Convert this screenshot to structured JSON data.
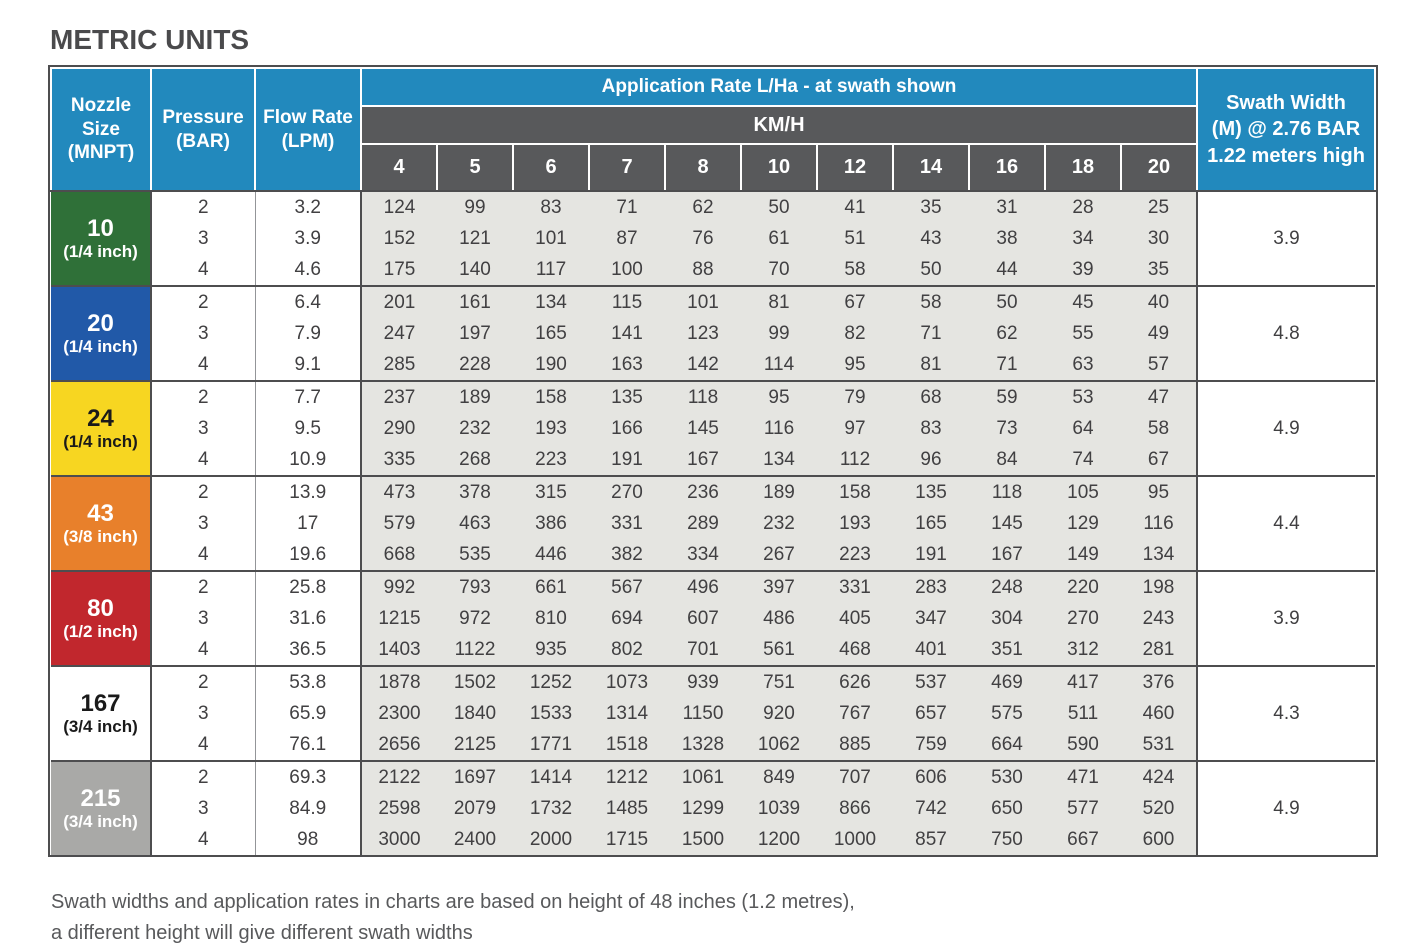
{
  "page": {
    "title": "METRIC UNITS",
    "footnote_lines": [
      "Swath widths and application rates in charts are based on height of 48 inches (1.2 metres),",
      "a different height will give different swath widths"
    ]
  },
  "colors": {
    "header_blue": "#2289BD",
    "header_dark_gray": "#58595B",
    "data_cell_gray": "#E5E5E1",
    "border_dark": "#4D4D4F"
  },
  "table": {
    "headers": {
      "nozzle_lines": [
        "Nozzle",
        "Size",
        "(MNPT)"
      ],
      "pressure_lines": [
        "Pressure",
        "(BAR)"
      ],
      "flow_lines": [
        "Flow Rate",
        "(LPM)"
      ],
      "application_rate": "Application Rate L/Ha - at swath shown",
      "kmh": "KM/H",
      "speeds": [
        "4",
        "5",
        "6",
        "7",
        "8",
        "10",
        "12",
        "14",
        "16",
        "18",
        "20"
      ],
      "swath_lines": [
        "Swath Width",
        "(M) @ 2.76 BAR",
        "1.22 meters high"
      ]
    },
    "nozzles": [
      {
        "size": "10",
        "inch": "(1/4 inch)",
        "bg": "#2F7038",
        "fg": "#FFFFFF",
        "swath": "3.9",
        "rows": [
          {
            "pressure": "2",
            "flow": "3.2",
            "values": [
              124,
              99,
              83,
              71,
              62,
              50,
              41,
              35,
              31,
              28,
              25
            ]
          },
          {
            "pressure": "3",
            "flow": "3.9",
            "values": [
              152,
              121,
              101,
              87,
              76,
              61,
              51,
              43,
              38,
              34,
              30
            ]
          },
          {
            "pressure": "4",
            "flow": "4.6",
            "values": [
              175,
              140,
              117,
              100,
              88,
              70,
              58,
              50,
              44,
              39,
              35
            ]
          }
        ]
      },
      {
        "size": "20",
        "inch": "(1/4 inch)",
        "bg": "#2159A8",
        "fg": "#FFFFFF",
        "swath": "4.8",
        "rows": [
          {
            "pressure": "2",
            "flow": "6.4",
            "values": [
              201,
              161,
              134,
              115,
              101,
              81,
              67,
              58,
              50,
              45,
              40
            ]
          },
          {
            "pressure": "3",
            "flow": "7.9",
            "values": [
              247,
              197,
              165,
              141,
              123,
              99,
              82,
              71,
              62,
              55,
              49
            ]
          },
          {
            "pressure": "4",
            "flow": "9.1",
            "values": [
              285,
              228,
              190,
              163,
              142,
              114,
              95,
              81,
              71,
              63,
              57
            ]
          }
        ]
      },
      {
        "size": "24",
        "inch": "(1/4 inch)",
        "bg": "#F7D621",
        "fg": "#1A1A1A",
        "swath": "4.9",
        "rows": [
          {
            "pressure": "2",
            "flow": "7.7",
            "values": [
              237,
              189,
              158,
              135,
              118,
              95,
              79,
              68,
              59,
              53,
              47
            ]
          },
          {
            "pressure": "3",
            "flow": "9.5",
            "values": [
              290,
              232,
              193,
              166,
              145,
              116,
              97,
              83,
              73,
              64,
              58
            ]
          },
          {
            "pressure": "4",
            "flow": "10.9",
            "values": [
              335,
              268,
              223,
              191,
              167,
              134,
              112,
              96,
              84,
              74,
              67
            ]
          }
        ]
      },
      {
        "size": "43",
        "inch": "(3/8 inch)",
        "bg": "#E8802B",
        "fg": "#FFFFFF",
        "swath": "4.4",
        "rows": [
          {
            "pressure": "2",
            "flow": "13.9",
            "values": [
              473,
              378,
              315,
              270,
              236,
              189,
              158,
              135,
              118,
              105,
              95
            ]
          },
          {
            "pressure": "3",
            "flow": "17",
            "values": [
              579,
              463,
              386,
              331,
              289,
              232,
              193,
              165,
              145,
              129,
              116
            ]
          },
          {
            "pressure": "4",
            "flow": "19.6",
            "values": [
              668,
              535,
              446,
              382,
              334,
              267,
              223,
              191,
              167,
              149,
              134
            ]
          }
        ]
      },
      {
        "size": "80",
        "inch": "(1/2 inch)",
        "bg": "#C1272D",
        "fg": "#FFFFFF",
        "swath": "3.9",
        "rows": [
          {
            "pressure": "2",
            "flow": "25.8",
            "values": [
              992,
              793,
              661,
              567,
              496,
              397,
              331,
              283,
              248,
              220,
              198
            ]
          },
          {
            "pressure": "3",
            "flow": "31.6",
            "values": [
              1215,
              972,
              810,
              694,
              607,
              486,
              405,
              347,
              304,
              270,
              243
            ]
          },
          {
            "pressure": "4",
            "flow": "36.5",
            "values": [
              1403,
              1122,
              935,
              802,
              701,
              561,
              468,
              401,
              351,
              312,
              281
            ]
          }
        ]
      },
      {
        "size": "167",
        "inch": "(3/4 inch)",
        "bg": "#FFFFFF",
        "fg": "#1A1A1A",
        "swath": "4.3",
        "rows": [
          {
            "pressure": "2",
            "flow": "53.8",
            "values": [
              1878,
              1502,
              1252,
              1073,
              939,
              751,
              626,
              537,
              469,
              417,
              376
            ]
          },
          {
            "pressure": "3",
            "flow": "65.9",
            "values": [
              2300,
              1840,
              1533,
              1314,
              1150,
              920,
              767,
              657,
              575,
              511,
              460
            ]
          },
          {
            "pressure": "4",
            "flow": "76.1",
            "values": [
              2656,
              2125,
              1771,
              1518,
              1328,
              1062,
              885,
              759,
              664,
              590,
              531
            ]
          }
        ]
      },
      {
        "size": "215",
        "inch": "(3/4 inch)",
        "bg": "#A9A9A7",
        "fg": "#FFFFFF",
        "swath": "4.9",
        "rows": [
          {
            "pressure": "2",
            "flow": "69.3",
            "values": [
              2122,
              1697,
              1414,
              1212,
              1061,
              849,
              707,
              606,
              530,
              471,
              424
            ]
          },
          {
            "pressure": "3",
            "flow": "84.9",
            "values": [
              2598,
              2079,
              1732,
              1485,
              1299,
              1039,
              866,
              742,
              650,
              577,
              520
            ]
          },
          {
            "pressure": "4",
            "flow": "98",
            "values": [
              3000,
              2400,
              2000,
              1715,
              1500,
              1200,
              1000,
              857,
              750,
              667,
              600
            ]
          }
        ]
      }
    ]
  }
}
